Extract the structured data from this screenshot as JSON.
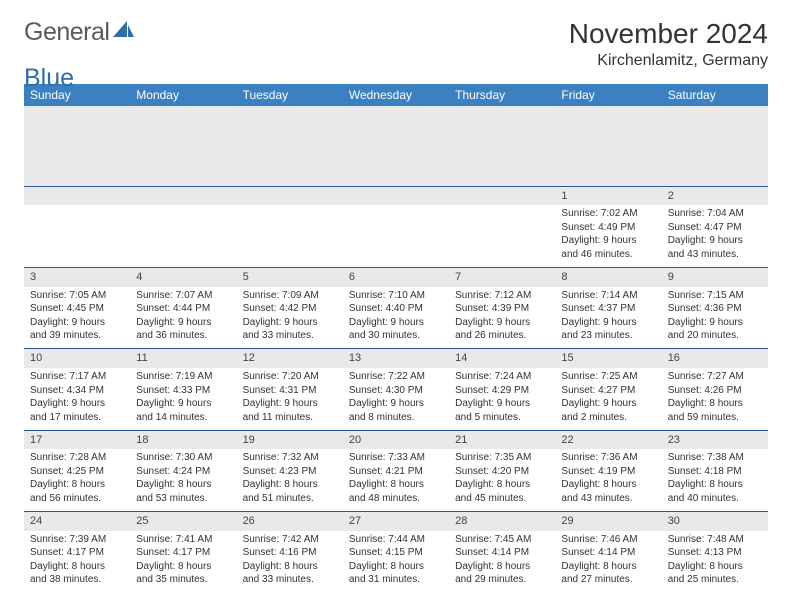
{
  "logo": {
    "word1": "General",
    "word2": "Blue"
  },
  "title": "November 2024",
  "location": "Kirchenlamitz, Germany",
  "header_bg": "#3b80c0",
  "header_text_color": "#ffffff",
  "daynum_bg": "#e9e9e9",
  "rule_color": "#2d5a8a",
  "weekdays": [
    "Sunday",
    "Monday",
    "Tuesday",
    "Wednesday",
    "Thursday",
    "Friday",
    "Saturday"
  ],
  "weeks": [
    [
      null,
      null,
      null,
      null,
      null,
      {
        "n": "1",
        "sr": "7:02 AM",
        "ss": "4:49 PM",
        "dl1": "9 hours",
        "dl2": "and 46 minutes."
      },
      {
        "n": "2",
        "sr": "7:04 AM",
        "ss": "4:47 PM",
        "dl1": "9 hours",
        "dl2": "and 43 minutes."
      }
    ],
    [
      {
        "n": "3",
        "sr": "7:05 AM",
        "ss": "4:45 PM",
        "dl1": "9 hours",
        "dl2": "and 39 minutes."
      },
      {
        "n": "4",
        "sr": "7:07 AM",
        "ss": "4:44 PM",
        "dl1": "9 hours",
        "dl2": "and 36 minutes."
      },
      {
        "n": "5",
        "sr": "7:09 AM",
        "ss": "4:42 PM",
        "dl1": "9 hours",
        "dl2": "and 33 minutes."
      },
      {
        "n": "6",
        "sr": "7:10 AM",
        "ss": "4:40 PM",
        "dl1": "9 hours",
        "dl2": "and 30 minutes."
      },
      {
        "n": "7",
        "sr": "7:12 AM",
        "ss": "4:39 PM",
        "dl1": "9 hours",
        "dl2": "and 26 minutes."
      },
      {
        "n": "8",
        "sr": "7:14 AM",
        "ss": "4:37 PM",
        "dl1": "9 hours",
        "dl2": "and 23 minutes."
      },
      {
        "n": "9",
        "sr": "7:15 AM",
        "ss": "4:36 PM",
        "dl1": "9 hours",
        "dl2": "and 20 minutes."
      }
    ],
    [
      {
        "n": "10",
        "sr": "7:17 AM",
        "ss": "4:34 PM",
        "dl1": "9 hours",
        "dl2": "and 17 minutes."
      },
      {
        "n": "11",
        "sr": "7:19 AM",
        "ss": "4:33 PM",
        "dl1": "9 hours",
        "dl2": "and 14 minutes."
      },
      {
        "n": "12",
        "sr": "7:20 AM",
        "ss": "4:31 PM",
        "dl1": "9 hours",
        "dl2": "and 11 minutes."
      },
      {
        "n": "13",
        "sr": "7:22 AM",
        "ss": "4:30 PM",
        "dl1": "9 hours",
        "dl2": "and 8 minutes."
      },
      {
        "n": "14",
        "sr": "7:24 AM",
        "ss": "4:29 PM",
        "dl1": "9 hours",
        "dl2": "and 5 minutes."
      },
      {
        "n": "15",
        "sr": "7:25 AM",
        "ss": "4:27 PM",
        "dl1": "9 hours",
        "dl2": "and 2 minutes."
      },
      {
        "n": "16",
        "sr": "7:27 AM",
        "ss": "4:26 PM",
        "dl1": "8 hours",
        "dl2": "and 59 minutes."
      }
    ],
    [
      {
        "n": "17",
        "sr": "7:28 AM",
        "ss": "4:25 PM",
        "dl1": "8 hours",
        "dl2": "and 56 minutes."
      },
      {
        "n": "18",
        "sr": "7:30 AM",
        "ss": "4:24 PM",
        "dl1": "8 hours",
        "dl2": "and 53 minutes."
      },
      {
        "n": "19",
        "sr": "7:32 AM",
        "ss": "4:23 PM",
        "dl1": "8 hours",
        "dl2": "and 51 minutes."
      },
      {
        "n": "20",
        "sr": "7:33 AM",
        "ss": "4:21 PM",
        "dl1": "8 hours",
        "dl2": "and 48 minutes."
      },
      {
        "n": "21",
        "sr": "7:35 AM",
        "ss": "4:20 PM",
        "dl1": "8 hours",
        "dl2": "and 45 minutes."
      },
      {
        "n": "22",
        "sr": "7:36 AM",
        "ss": "4:19 PM",
        "dl1": "8 hours",
        "dl2": "and 43 minutes."
      },
      {
        "n": "23",
        "sr": "7:38 AM",
        "ss": "4:18 PM",
        "dl1": "8 hours",
        "dl2": "and 40 minutes."
      }
    ],
    [
      {
        "n": "24",
        "sr": "7:39 AM",
        "ss": "4:17 PM",
        "dl1": "8 hours",
        "dl2": "and 38 minutes."
      },
      {
        "n": "25",
        "sr": "7:41 AM",
        "ss": "4:17 PM",
        "dl1": "8 hours",
        "dl2": "and 35 minutes."
      },
      {
        "n": "26",
        "sr": "7:42 AM",
        "ss": "4:16 PM",
        "dl1": "8 hours",
        "dl2": "and 33 minutes."
      },
      {
        "n": "27",
        "sr": "7:44 AM",
        "ss": "4:15 PM",
        "dl1": "8 hours",
        "dl2": "and 31 minutes."
      },
      {
        "n": "28",
        "sr": "7:45 AM",
        "ss": "4:14 PM",
        "dl1": "8 hours",
        "dl2": "and 29 minutes."
      },
      {
        "n": "29",
        "sr": "7:46 AM",
        "ss": "4:14 PM",
        "dl1": "8 hours",
        "dl2": "and 27 minutes."
      },
      {
        "n": "30",
        "sr": "7:48 AM",
        "ss": "4:13 PM",
        "dl1": "8 hours",
        "dl2": "and 25 minutes."
      }
    ]
  ],
  "labels": {
    "sunrise": "Sunrise:",
    "sunset": "Sunset:",
    "daylight": "Daylight:"
  }
}
